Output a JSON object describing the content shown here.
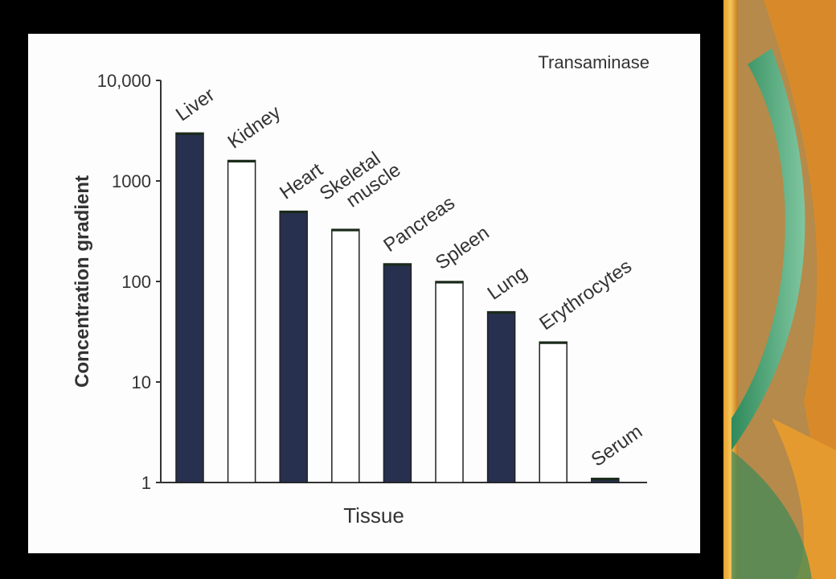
{
  "chart_data": {
    "type": "bar",
    "title": "Transaminase",
    "ylabel": "Concentration gradient",
    "xlabel": "Tissue",
    "categories": [
      "Liver",
      "Kidney",
      "Heart",
      "Skeletal muscle",
      "Pancreas",
      "Spleen",
      "Lung",
      "Erythrocytes",
      "Serum"
    ],
    "values": [
      3000,
      1600,
      500,
      330,
      150,
      100,
      50,
      25,
      1.1
    ],
    "colors": [
      "#27304f",
      "#ffffff",
      "#27304f",
      "#ffffff",
      "#27304f",
      "#ffffff",
      "#27304f",
      "#ffffff",
      "#27304f"
    ],
    "ylim": [
      1,
      10000
    ],
    "yticks": [
      1,
      10,
      100,
      1000,
      {
        "value": 10000,
        "label": "10,000"
      }
    ],
    "log_y": true
  }
}
